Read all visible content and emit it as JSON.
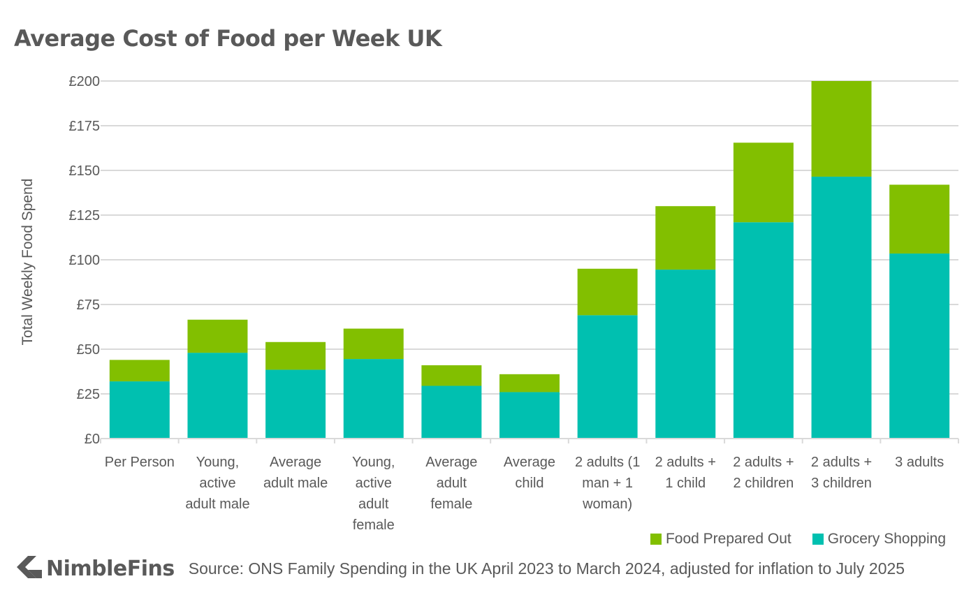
{
  "chart_data": {
    "type": "bar",
    "stacked": true,
    "title": "Average Cost of Food per Week UK",
    "xlabel": "",
    "ylabel": "Total Weekly Food Spend",
    "ylim": [
      0,
      200
    ],
    "yticks": [
      {
        "value": 0,
        "label": "£0"
      },
      {
        "value": 25,
        "label": "£25"
      },
      {
        "value": 50,
        "label": "£50"
      },
      {
        "value": 75,
        "label": "£75"
      },
      {
        "value": 100,
        "label": "£100"
      },
      {
        "value": 125,
        "label": "£125"
      },
      {
        "value": 150,
        "label": "£150"
      },
      {
        "value": 175,
        "label": "£175"
      },
      {
        "value": 200,
        "label": "£200"
      }
    ],
    "categories": [
      [
        "Per Person"
      ],
      [
        "Young,",
        "active",
        "adult male"
      ],
      [
        "Average",
        "adult male"
      ],
      [
        "Young,",
        "active",
        "adult",
        "female"
      ],
      [
        "Average",
        "adult",
        "female"
      ],
      [
        "Average",
        "child"
      ],
      [
        "2 adults (1",
        "man + 1",
        "woman)"
      ],
      [
        "2 adults +",
        "1 child"
      ],
      [
        "2 adults +",
        "2 children"
      ],
      [
        "2 adults +",
        "3 children"
      ],
      [
        "3 adults"
      ]
    ],
    "series": [
      {
        "name": "Grocery Shopping",
        "color": "#00c0b0",
        "values": [
          32,
          48,
          38.5,
          44.5,
          29.5,
          26,
          69,
          94.5,
          121,
          146.5,
          103.5
        ]
      },
      {
        "name": "Food Prepared Out",
        "color": "#82bf00",
        "values": [
          12,
          18.5,
          15.5,
          17,
          11.5,
          10,
          26,
          35.5,
          44.5,
          53.5,
          38.5
        ]
      }
    ],
    "legend": [
      {
        "name": "Food Prepared Out",
        "color": "#82bf00"
      },
      {
        "name": "Grocery Shopping",
        "color": "#00c0b0"
      }
    ],
    "legend_position": "bottom-right",
    "grid": true
  },
  "footer": {
    "brand": "NimbleFins",
    "source": "Source: ONS Family Spending in the UK April 2023 to March 2024, adjusted for inflation to July 2025"
  }
}
